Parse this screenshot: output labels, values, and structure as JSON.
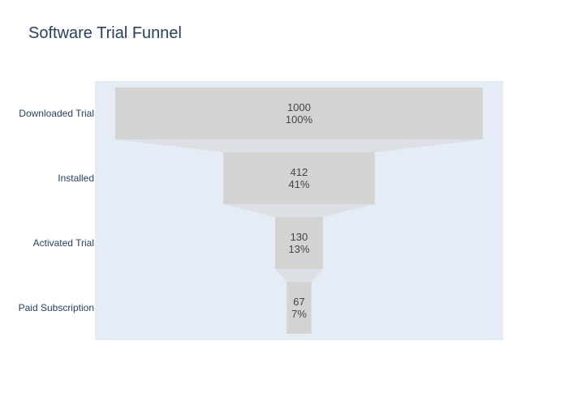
{
  "chart_data": {
    "type": "funnel",
    "title": "Software Trial Funnel",
    "categories": [
      "Downloaded Trial",
      "Installed",
      "Activated Trial",
      "Paid Subscription"
    ],
    "values": [
      1000,
      412,
      130,
      67
    ],
    "percent_labels": [
      "100%",
      "41%",
      "13%",
      "7%"
    ],
    "textinfo": "value+percent initial",
    "colors": {
      "plot_background": "#e5ecf6",
      "bar": "#d3d3d3",
      "connector": "#dcdfe4",
      "title": "#2a3f5f",
      "text": "#444444"
    }
  }
}
